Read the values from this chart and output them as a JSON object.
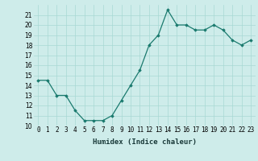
{
  "x": [
    0,
    1,
    2,
    3,
    4,
    5,
    6,
    7,
    8,
    9,
    10,
    11,
    12,
    13,
    14,
    15,
    16,
    17,
    18,
    19,
    20,
    21,
    22,
    23
  ],
  "y": [
    14.5,
    14.5,
    13.0,
    13.0,
    11.5,
    10.5,
    10.5,
    10.5,
    11.0,
    12.5,
    14.0,
    15.5,
    18.0,
    19.0,
    21.5,
    20.0,
    20.0,
    19.5,
    19.5,
    20.0,
    19.5,
    18.5,
    18.0,
    18.5
  ],
  "line_color": "#1a7a6e",
  "marker": "D",
  "marker_size": 1.8,
  "background_color": "#ceecea",
  "grid_color": "#a8d8d4",
  "xlabel": "Humidex (Indice chaleur)",
  "ylim": [
    10,
    22
  ],
  "xlim": [
    -0.5,
    23.5
  ],
  "yticks": [
    10,
    11,
    12,
    13,
    14,
    15,
    16,
    17,
    18,
    19,
    20,
    21
  ],
  "xtick_labels": [
    "0",
    "1",
    "2",
    "3",
    "4",
    "5",
    "6",
    "7",
    "8",
    "9",
    "10",
    "11",
    "12",
    "13",
    "14",
    "15",
    "16",
    "17",
    "18",
    "19",
    "20",
    "21",
    "22",
    "23"
  ],
  "xlabel_fontsize": 6.5,
  "tick_fontsize": 5.5
}
